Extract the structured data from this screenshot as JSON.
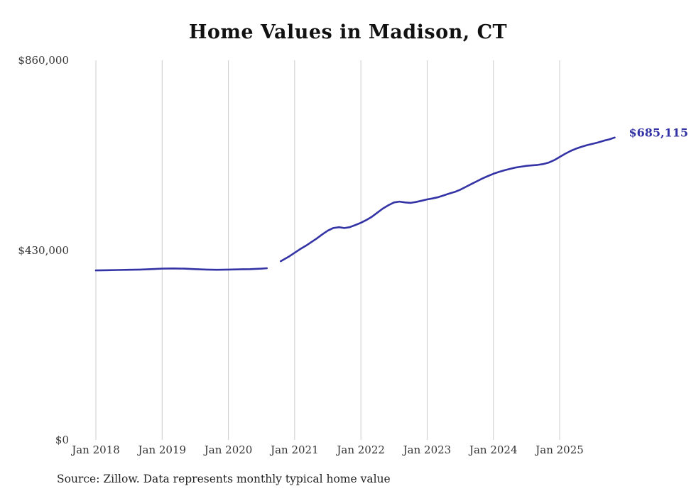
{
  "chart_data": {
    "type": "line",
    "title": "Home Values in Madison, CT",
    "source": "Source: Zillow. Data represents monthly typical home value",
    "end_label": "$685,115",
    "end_value": 685115,
    "line_color": "#3333a6",
    "grid_color": "#cccccc",
    "grid": "vertical-only",
    "legend": "none",
    "xlabel": "",
    "ylabel": "",
    "ylim": [
      0,
      860000
    ],
    "x_range": [
      2018.0,
      2025.9
    ],
    "yticks": [
      {
        "value": 0,
        "label": "$0"
      },
      {
        "value": 430000,
        "label": "$430,000"
      },
      {
        "value": 860000,
        "label": "$860,000"
      }
    ],
    "xticks": [
      {
        "value": 2018,
        "label": "Jan 2018"
      },
      {
        "value": 2019,
        "label": "Jan 2019"
      },
      {
        "value": 2020,
        "label": "Jan 2020"
      },
      {
        "value": 2021,
        "label": "Jan 2021"
      },
      {
        "value": 2022,
        "label": "Jan 2022"
      },
      {
        "value": 2023,
        "label": "Jan 2023"
      },
      {
        "value": 2024,
        "label": "Jan 2024"
      },
      {
        "value": 2025,
        "label": "Jan 2025"
      }
    ],
    "series": [
      {
        "name": "Monthly typical home value",
        "note": "Line has a visible data gap in late 2020; x is fractional year, v is USD",
        "segments": [
          [
            [
              2018.0,
              384000
            ],
            [
              2018.17,
              384500
            ],
            [
              2018.33,
              385000
            ],
            [
              2018.5,
              385500
            ],
            [
              2018.67,
              386000
            ],
            [
              2018.83,
              387000
            ],
            [
              2019.0,
              388000
            ],
            [
              2019.17,
              388500
            ],
            [
              2019.33,
              388000
            ],
            [
              2019.5,
              387000
            ],
            [
              2019.67,
              386000
            ],
            [
              2019.83,
              385500
            ],
            [
              2020.0,
              386000
            ],
            [
              2020.17,
              386500
            ],
            [
              2020.33,
              387000
            ],
            [
              2020.5,
              388000
            ],
            [
              2020.58,
              389000
            ]
          ],
          [
            [
              2020.79,
              405000
            ],
            [
              2020.92,
              416000
            ],
            [
              2021.0,
              424000
            ],
            [
              2021.08,
              432000
            ],
            [
              2021.17,
              440000
            ],
            [
              2021.25,
              448000
            ],
            [
              2021.33,
              456000
            ],
            [
              2021.42,
              466000
            ],
            [
              2021.5,
              474000
            ],
            [
              2021.58,
              480000
            ],
            [
              2021.67,
              482000
            ],
            [
              2021.75,
              480000
            ],
            [
              2021.83,
              482000
            ],
            [
              2021.92,
              487000
            ],
            [
              2022.0,
              492000
            ],
            [
              2022.08,
              498000
            ],
            [
              2022.17,
              506000
            ],
            [
              2022.25,
              515000
            ],
            [
              2022.33,
              524000
            ],
            [
              2022.42,
              532000
            ],
            [
              2022.5,
              538000
            ],
            [
              2022.58,
              540000
            ],
            [
              2022.67,
              538000
            ],
            [
              2022.75,
              537000
            ],
            [
              2022.83,
              539000
            ],
            [
              2022.92,
              542000
            ],
            [
              2023.0,
              545000
            ],
            [
              2023.08,
              547000
            ],
            [
              2023.17,
              550000
            ],
            [
              2023.25,
              554000
            ],
            [
              2023.33,
              558000
            ],
            [
              2023.42,
              562000
            ],
            [
              2023.5,
              567000
            ],
            [
              2023.58,
              573000
            ],
            [
              2023.67,
              580000
            ],
            [
              2023.75,
              586000
            ],
            [
              2023.83,
              592000
            ],
            [
              2023.92,
              598000
            ],
            [
              2024.0,
              603000
            ],
            [
              2024.08,
              607000
            ],
            [
              2024.17,
              611000
            ],
            [
              2024.25,
              614000
            ],
            [
              2024.33,
              617000
            ],
            [
              2024.42,
              619000
            ],
            [
              2024.5,
              621000
            ],
            [
              2024.58,
              622000
            ],
            [
              2024.67,
              623000
            ],
            [
              2024.75,
              625000
            ],
            [
              2024.83,
              628000
            ],
            [
              2024.92,
              634000
            ],
            [
              2025.0,
              641000
            ],
            [
              2025.08,
              648000
            ],
            [
              2025.17,
              655000
            ],
            [
              2025.25,
              660000
            ],
            [
              2025.33,
              664000
            ],
            [
              2025.42,
              668000
            ],
            [
              2025.5,
              671000
            ],
            [
              2025.58,
              674000
            ],
            [
              2025.67,
              678000
            ],
            [
              2025.75,
              681000
            ],
            [
              2025.83,
              685115
            ]
          ]
        ]
      }
    ]
  }
}
